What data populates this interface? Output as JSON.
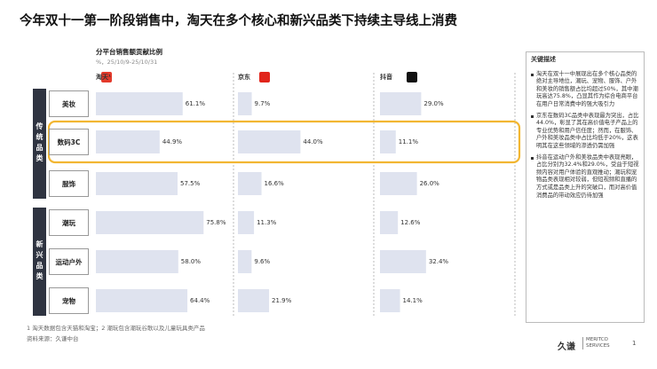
{
  "title": "今年双十一第一阶段销售中，淘天在多个核心和新兴品类下持续主导线上消费",
  "chart_data": {
    "type": "bar",
    "title": "分平台销售额贡献比例",
    "subtitle": "%，25/10/9-25/10/31",
    "groups": [
      {
        "label": "传统品类",
        "categories": [
          "美妆",
          "数码3C",
          "服饰"
        ]
      },
      {
        "label": "新兴品类",
        "categories": [
          "潮玩",
          "运动户外",
          "宠物"
        ]
      }
    ],
    "xlim": [
      0,
      100
    ],
    "series": [
      {
        "name": "淘天¹",
        "color": "#dfe3ef",
        "values": [
          61.1,
          44.9,
          57.5,
          75.8,
          58.0,
          64.4
        ],
        "value_labels": [
          "61.1%",
          "44.9%",
          "57.5%",
          "75.8%",
          "58.0%",
          "64.4%"
        ]
      },
      {
        "name": "京东",
        "color": "#dfe3ef",
        "values": [
          9.7,
          44.0,
          16.6,
          11.3,
          9.6,
          21.9
        ],
        "value_labels": [
          "9.7%",
          "44.0%",
          "16.6%",
          "11.3%",
          "9.6%",
          "21.9%"
        ]
      },
      {
        "name": "抖音",
        "color": "#dfe3ef",
        "values": [
          29.0,
          11.1,
          26.0,
          12.6,
          32.4,
          14.1
        ],
        "value_labels": [
          "29.0%",
          "11.1%",
          "26.0%",
          "12.6%",
          "32.4%",
          "14.1%"
        ]
      }
    ],
    "highlight_color": "#f2b632"
  },
  "panel": {
    "heading": "关键描述",
    "items": [
      "淘天在双十一中展现出在多个核心品类的绝对主导地位，潮玩、宠物、服饰、户外和美妆的销售额占比均超过50%，其中潮玩高达75.8%，凸显其作为综合电商平台在用户日常消费中的强大吸引力",
      "京东在数码3C品类中表现最为突出，占比44.0%，彰显了其在高价值电子产品上的专业优势和用户信任度；然而，在服饰、户外和美妆品类中占比均低于20%，这表明其在这些领域的渗透仍需加强",
      "抖音在运动户外和美妆品类中表现亮眼，占比分别为32.4%和29.0%，受益于短视频内容对用户体验的直观推动；潮玩和宠物品类表现相对较弱，但短视频和直播的方式或是品类上升的突破口，而对高价值消费品的带动效应仍待加强"
    ]
  },
  "notes": [
    "1 淘天数据包含天猫和淘宝；2 潮玩包含潮玩谷歌以及儿童玩具类产品",
    "资料来源：久谦中台"
  ],
  "footer": {
    "brand": "久谦",
    "brand_en": "MERITCO SERVICES",
    "page": "1"
  }
}
